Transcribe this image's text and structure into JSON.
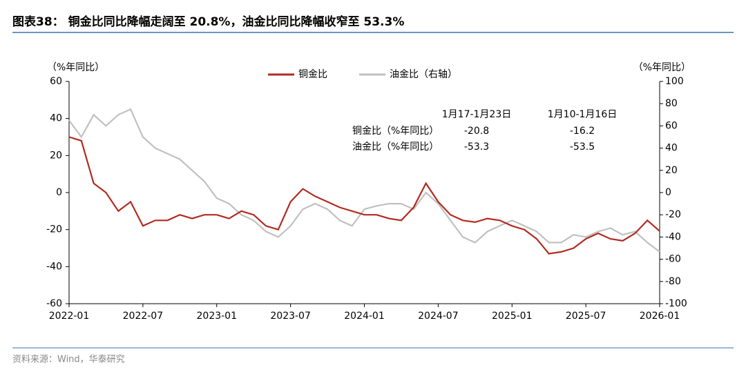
{
  "title": "图表38：  铜金比同比降幅走阔至 20.8%，油金比同比降幅收窄至 53.3%",
  "source": "资料来源：Wind，华泰研究",
  "chart_data": {
    "type": "line",
    "y_label": "（%年同比）",
    "y2_label": "（%年同比）",
    "x": [
      "2022-01",
      "2022-02",
      "2022-03",
      "2022-04",
      "2022-05",
      "2022-06",
      "2022-07",
      "2022-08",
      "2022-09",
      "2022-10",
      "2022-11",
      "2022-12",
      "2023-01",
      "2023-02",
      "2023-03",
      "2023-04",
      "2023-05",
      "2023-06",
      "2023-07",
      "2023-08",
      "2023-09",
      "2023-10",
      "2023-11",
      "2023-12",
      "2024-01",
      "2024-02",
      "2024-03",
      "2024-04",
      "2024-05",
      "2024-06",
      "2024-07",
      "2024-08",
      "2024-09",
      "2024-10",
      "2024-11",
      "2024-12",
      "2025-01",
      "2025-02",
      "2025-03",
      "2025-04",
      "2025-05",
      "2025-06",
      "2025-07",
      "2025-08",
      "2025-09",
      "2025-10",
      "2025-11",
      "2025-12",
      "2026-01"
    ],
    "xticks": [
      "2022-01",
      "2022-07",
      "2023-01",
      "2023-07",
      "2024-01",
      "2024-07",
      "2025-01",
      "2025-07",
      "2026-01"
    ],
    "series": [
      {
        "name": "铜金比",
        "color": "#b22a1f",
        "axis": "y",
        "values": [
          30,
          28,
          5,
          0,
          -10,
          -5,
          -18,
          -15,
          -15,
          -12,
          -14,
          -12,
          -12,
          -14,
          -10,
          -12,
          -18,
          -20,
          -5,
          2,
          -2,
          -5,
          -8,
          -10,
          -12,
          -12,
          -14,
          -15,
          -8,
          5,
          -5,
          -12,
          -15,
          -16,
          -14,
          -15,
          -18,
          -20,
          -25,
          -33,
          -32,
          -30,
          -25,
          -22,
          -25,
          -26,
          -22,
          -15,
          -20.8
        ]
      },
      {
        "name": "油金比（右轴）",
        "color": "#c0c0c0",
        "axis": "y2",
        "values": [
          65,
          50,
          70,
          60,
          70,
          75,
          50,
          40,
          35,
          30,
          20,
          10,
          -5,
          -10,
          -20,
          -25,
          -35,
          -40,
          -30,
          -15,
          -10,
          -15,
          -25,
          -30,
          -15,
          -12,
          -10,
          -10,
          -15,
          0,
          -10,
          -25,
          -40,
          -45,
          -35,
          -30,
          -25,
          -30,
          -35,
          -45,
          -45,
          -38,
          -40,
          -35,
          -32,
          -38,
          -35,
          -45,
          -53.3
        ]
      }
    ],
    "ylim": [
      -60,
      60
    ],
    "yticks": [
      60,
      40,
      20,
      0,
      -20,
      -40,
      -60
    ],
    "y2lim": [
      -100,
      100
    ],
    "y2ticks": [
      100,
      80,
      60,
      40,
      20,
      0,
      -20,
      -40,
      -60,
      -80,
      -100
    ],
    "table": {
      "header": [
        "1月17-1月23日",
        "1月10-1月16日"
      ],
      "rows": [
        [
          "铜金比（%年同比）",
          -20.8,
          -16.2
        ],
        [
          "油金比（%年同比）",
          -53.3,
          -53.5
        ]
      ]
    }
  }
}
